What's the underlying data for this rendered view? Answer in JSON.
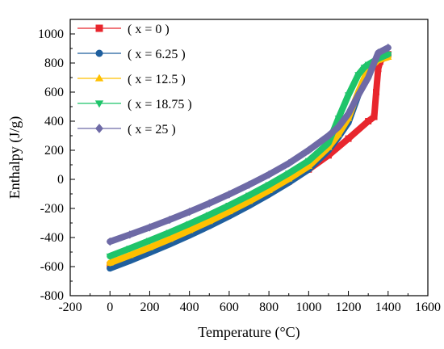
{
  "chart_data": {
    "type": "scatter",
    "title": "",
    "xlabel": "Temperature (°C)",
    "ylabel": "Enthalpy (J/g)",
    "xlim": [
      -200,
      1600
    ],
    "ylim": [
      -800,
      1100
    ],
    "xticks": [
      -200,
      0,
      200,
      400,
      600,
      800,
      1000,
      1200,
      1400,
      1600
    ],
    "yticks": [
      -800,
      -600,
      -400,
      -200,
      0,
      200,
      400,
      600,
      800,
      1000
    ],
    "grid": false,
    "legend_position": "top-left",
    "series": [
      {
        "name": "( x = 0 )",
        "color": "#e8262d",
        "marker": "square",
        "x": [
          0,
          100,
          200,
          300,
          400,
          500,
          600,
          700,
          800,
          900,
          1000,
          1100,
          1200,
          1300,
          1330,
          1340,
          1350,
          1360,
          1380,
          1400
        ],
        "y": [
          -590,
          -535,
          -480,
          -422,
          -362,
          -300,
          -234,
          -165,
          -92,
          -15,
          68,
          165,
          280,
          400,
          430,
          600,
          760,
          810,
          840,
          860
        ]
      },
      {
        "name": "( x = 6.25 )",
        "color": "#1f5f9e",
        "marker": "circle",
        "x": [
          0,
          100,
          200,
          300,
          400,
          500,
          600,
          700,
          800,
          900,
          1000,
          1100,
          1150,
          1200,
          1250,
          1300,
          1350,
          1400
        ],
        "y": [
          -612,
          -560,
          -504,
          -446,
          -385,
          -321,
          -253,
          -181,
          -104,
          -22,
          68,
          200,
          290,
          390,
          580,
          760,
          830,
          850
        ]
      },
      {
        "name": "( x = 12.5 )",
        "color": "#ffc000",
        "marker": "triangle-up",
        "x": [
          0,
          100,
          200,
          300,
          400,
          500,
          600,
          700,
          800,
          900,
          1000,
          1100,
          1150,
          1200,
          1250,
          1300,
          1350,
          1400
        ],
        "y": [
          -575,
          -523,
          -469,
          -412,
          -352,
          -289,
          -222,
          -152,
          -77,
          3,
          90,
          220,
          310,
          420,
          600,
          760,
          820,
          840
        ]
      },
      {
        "name": "( x = 18.75 )",
        "color": "#1fc46a",
        "marker": "triangle-down",
        "x": [
          0,
          100,
          200,
          300,
          400,
          500,
          600,
          700,
          800,
          900,
          1000,
          1100,
          1150,
          1200,
          1250,
          1280,
          1300,
          1350,
          1400
        ],
        "y": [
          -528,
          -475,
          -421,
          -365,
          -306,
          -244,
          -179,
          -110,
          -37,
          42,
          128,
          250,
          420,
          580,
          720,
          770,
          790,
          830,
          860
        ]
      },
      {
        "name": "( x = 25 )",
        "color": "#6e6aa6",
        "marker": "diamond",
        "x": [
          0,
          100,
          200,
          300,
          400,
          500,
          600,
          700,
          800,
          900,
          1000,
          1100,
          1150,
          1200,
          1250,
          1300,
          1350,
          1400
        ],
        "y": [
          -428,
          -380,
          -330,
          -278,
          -223,
          -165,
          -103,
          -37,
          33,
          110,
          200,
          300,
          360,
          450,
          580,
          700,
          870,
          905
        ]
      }
    ]
  }
}
